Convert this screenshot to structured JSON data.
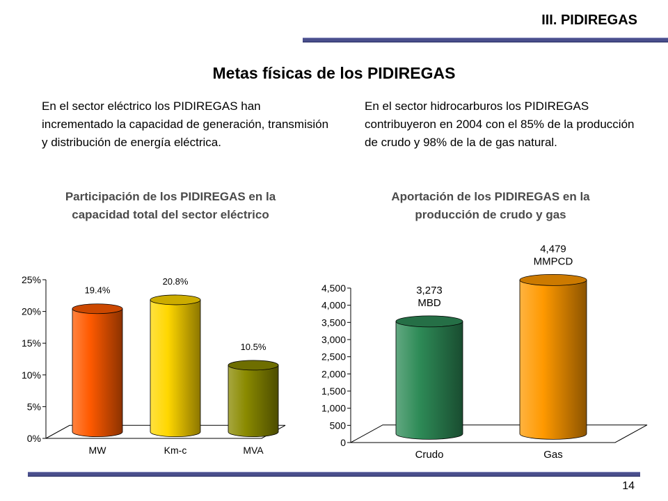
{
  "header": {
    "section": "III. PIDIREGAS"
  },
  "title": "Metas físicas de los PIDIREGAS",
  "paragraphs": {
    "left": "En el sector eléctrico los PIDIREGAS han incrementado la capacidad de generación, transmisión y distribución de energía eléctrica.",
    "right": "En el sector hidrocarburos los PIDIREGAS contribuyeron en 2004 con el 85% de la producción de crudo y 98% de la de gas natural."
  },
  "colors": {
    "rule": "#4a4f8c",
    "bar_mw": "#ff5a00",
    "bar_kmc": "#ffd700",
    "bar_mva": "#8a8a00",
    "bar_crudo": "#2e8b57",
    "bar_gas": "#ff9900"
  },
  "chart_data": [
    {
      "type": "bar",
      "title": "Participación de los PIDIREGAS en la capacidad total del sector eléctrico",
      "categories": [
        "MW",
        "Km-c",
        "MVA"
      ],
      "values": [
        19.4,
        20.8,
        10.5
      ],
      "data_labels": [
        "19.4%",
        "20.8%",
        "10.5%"
      ],
      "ylim": [
        0,
        25
      ],
      "yticks": [
        "0%",
        "5%",
        "10%",
        "15%",
        "20%",
        "25%"
      ],
      "grid": false,
      "style": "3d-cylinder"
    },
    {
      "type": "bar",
      "title": "Aportación de los PIDIREGAS en la producción de crudo y gas",
      "categories": [
        "Crudo",
        "Gas"
      ],
      "values": [
        3273,
        4479
      ],
      "data_labels": [
        [
          "3,273",
          "MBD"
        ],
        [
          "4,479",
          "MMPCD"
        ]
      ],
      "ylim": [
        0,
        4500
      ],
      "yticks": [
        "0",
        "500",
        "1,000",
        "1,500",
        "2,000",
        "2,500",
        "3,000",
        "3,500",
        "4,000",
        "4,500"
      ],
      "grid": false,
      "style": "3d-cylinder"
    }
  ],
  "page_number": "14"
}
